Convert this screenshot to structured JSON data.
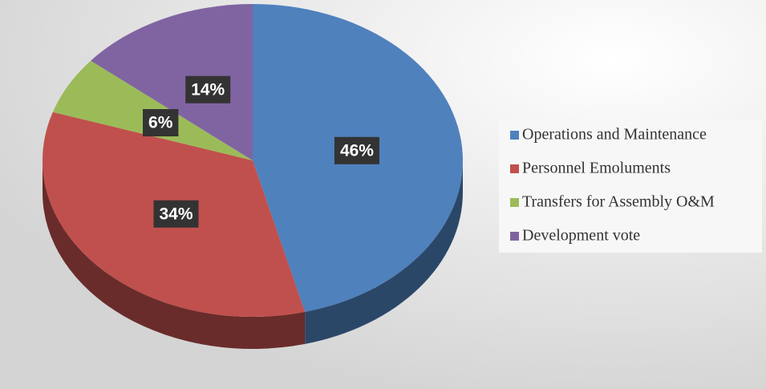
{
  "chart_data": {
    "type": "pie",
    "categories": [
      "Operations and Maintenance",
      "Personnel Emoluments",
      "Transfers for Assembly O&M",
      "Development vote"
    ],
    "values": [
      46,
      34,
      6,
      14
    ],
    "value_labels": [
      "46%",
      "34%",
      "6%",
      "14%"
    ],
    "colors": [
      "#4f81bd",
      "#c0504d",
      "#9bbb59",
      "#8064a2"
    ],
    "legend": "right"
  }
}
